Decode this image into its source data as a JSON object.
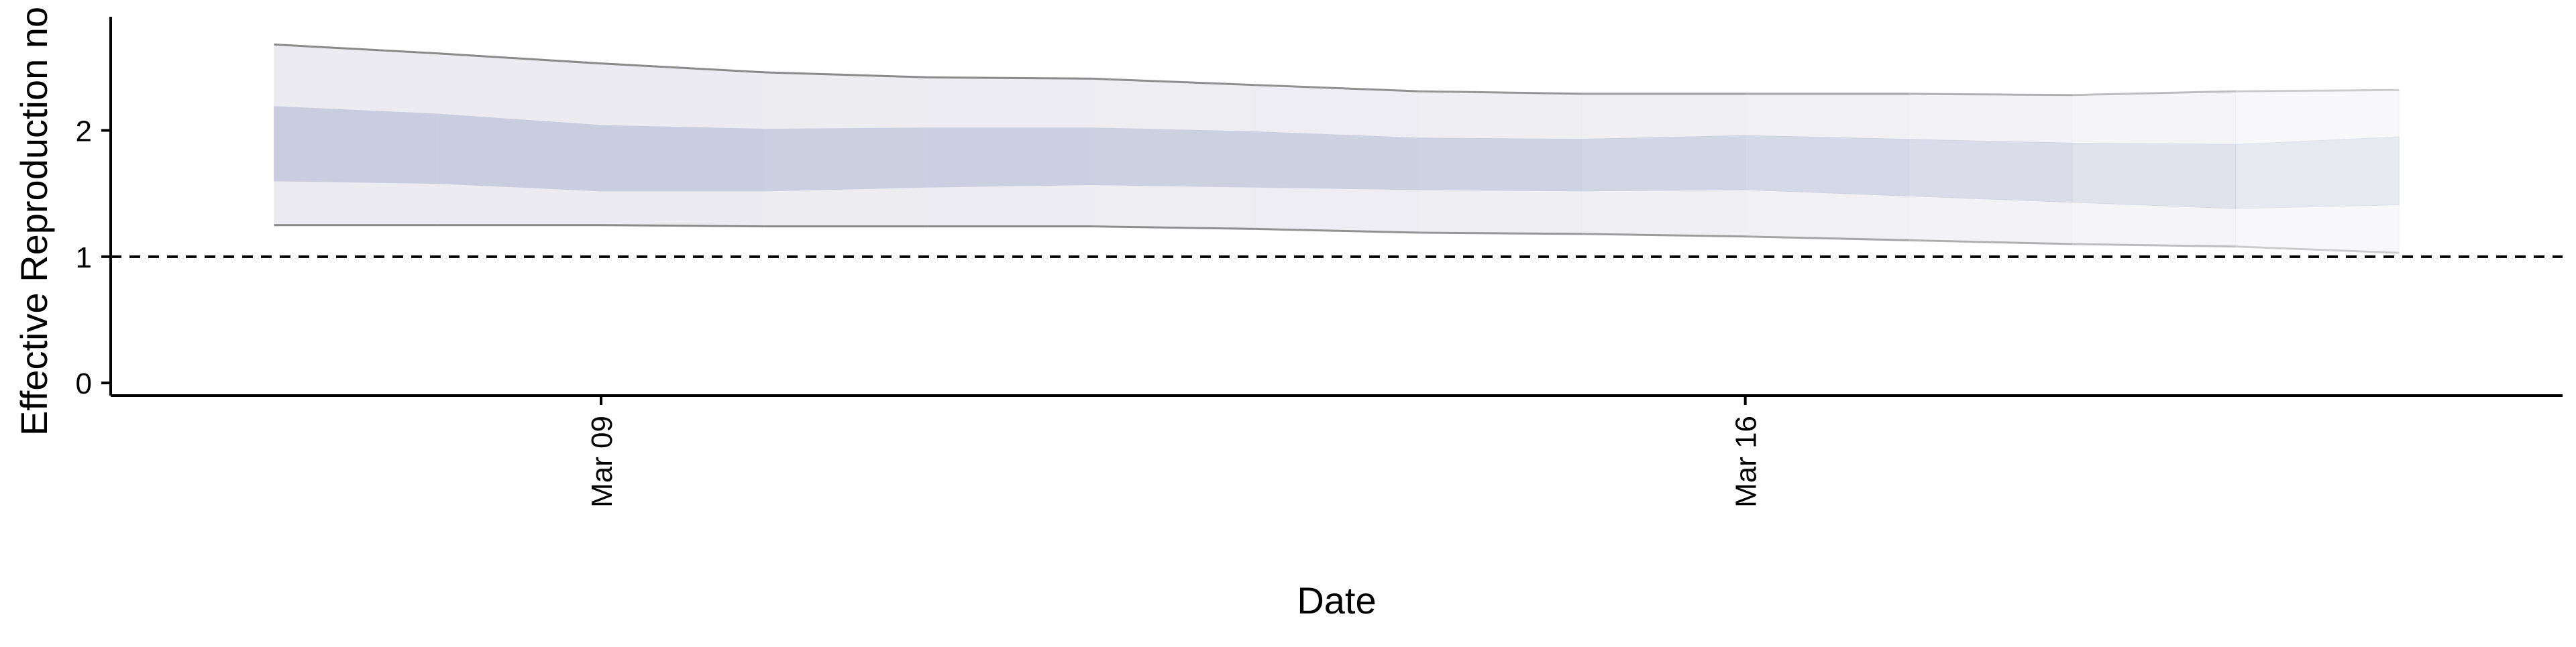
{
  "chart_data": {
    "type": "area",
    "title": "",
    "xlabel": "Date",
    "ylabel": "Effective Reproduction no",
    "x_ticks": [
      {
        "date": "2020-03-09",
        "label": "Mar 09"
      },
      {
        "date": "2020-03-16",
        "label": "Mar 16"
      }
    ],
    "y_ticks": [
      0,
      1,
      2
    ],
    "ylim": [
      -0.1,
      2.9
    ],
    "xlim": [
      "2020-03-06",
      "2020-03-21"
    ],
    "reference_line": {
      "y": 1,
      "style": "dashed"
    },
    "grid": false,
    "legend": "none",
    "x": [
      "2020-03-07",
      "2020-03-08",
      "2020-03-09",
      "2020-03-10",
      "2020-03-11",
      "2020-03-12",
      "2020-03-13",
      "2020-03-14",
      "2020-03-15",
      "2020-03-16",
      "2020-03-17",
      "2020-03-18",
      "2020-03-19",
      "2020-03-20"
    ],
    "outer_upper": [
      2.68,
      2.61,
      2.53,
      2.46,
      2.42,
      2.41,
      2.36,
      2.31,
      2.29,
      2.29,
      2.29,
      2.28,
      2.31,
      2.32
    ],
    "outer_lower": [
      1.25,
      1.25,
      1.25,
      1.24,
      1.24,
      1.24,
      1.22,
      1.19,
      1.18,
      1.16,
      1.13,
      1.1,
      1.08,
      1.03
    ],
    "inner_upper": [
      2.19,
      2.13,
      2.04,
      2.01,
      2.02,
      2.02,
      1.99,
      1.94,
      1.93,
      1.96,
      1.93,
      1.9,
      1.89,
      1.95
    ],
    "inner_lower": [
      1.6,
      1.58,
      1.52,
      1.52,
      1.55,
      1.57,
      1.55,
      1.53,
      1.52,
      1.53,
      1.48,
      1.43,
      1.38,
      1.41
    ],
    "band_opacity": [
      1.0,
      1.0,
      1.0,
      0.97,
      0.95,
      0.92,
      0.88,
      0.83,
      0.78,
      0.7,
      0.6,
      0.48,
      0.35,
      0.22
    ],
    "colors": {
      "outer_band": "#ebebf1",
      "inner_band": "#c9cddf",
      "outline": "#8a8a8a",
      "axis": "#000000",
      "reference_line": "#000000"
    }
  }
}
